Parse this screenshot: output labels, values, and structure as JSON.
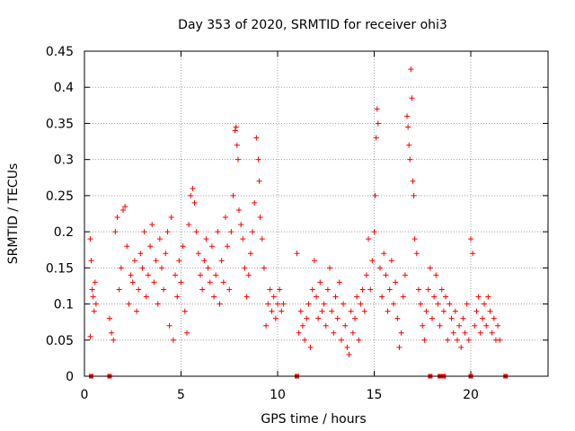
{
  "chart_data": {
    "type": "scatter",
    "title": "Day 353 of 2020, SRMTID for receiver ohi3",
    "xlabel": "GPS time / hours",
    "ylabel": "SRMTID / TECUs",
    "xlim": [
      0,
      24
    ],
    "ylim": [
      0,
      0.45
    ],
    "xticks": [
      0,
      5,
      10,
      15,
      20
    ],
    "xtick_labels": [
      "0",
      "5",
      "10",
      "15",
      "20"
    ],
    "yticks": [
      0,
      0.05,
      0.1,
      0.15,
      0.2,
      0.25,
      0.3,
      0.35,
      0.4,
      0.45
    ],
    "ytick_labels": [
      "0",
      "0.05",
      "0.1",
      "0.15",
      "0.2",
      "0.25",
      "0.3",
      "0.35",
      "0.4",
      "0.45"
    ],
    "grid": true,
    "marker": "plus",
    "series_color": "#ff0000",
    "series": [
      {
        "name": "SRMTID",
        "points": [
          [
            0.3,
            0.19
          ],
          [
            0.35,
            0.16
          ],
          [
            0.4,
            0.12
          ],
          [
            0.45,
            0.11
          ],
          [
            0.5,
            0.09
          ],
          [
            0.55,
            0.13
          ],
          [
            0.6,
            0.1
          ],
          [
            0.3,
            0.055
          ],
          [
            1.3,
            0.08
          ],
          [
            1.4,
            0.06
          ],
          [
            1.5,
            0.05
          ],
          [
            1.6,
            0.2
          ],
          [
            1.7,
            0.22
          ],
          [
            1.8,
            0.12
          ],
          [
            1.9,
            0.15
          ],
          [
            2.0,
            0.23
          ],
          [
            2.1,
            0.235
          ],
          [
            2.2,
            0.18
          ],
          [
            2.3,
            0.1
          ],
          [
            2.4,
            0.14
          ],
          [
            2.5,
            0.13
          ],
          [
            2.6,
            0.16
          ],
          [
            2.7,
            0.09
          ],
          [
            2.8,
            0.12
          ],
          [
            2.9,
            0.17
          ],
          [
            3.0,
            0.15
          ],
          [
            3.1,
            0.2
          ],
          [
            3.2,
            0.11
          ],
          [
            3.3,
            0.14
          ],
          [
            3.4,
            0.18
          ],
          [
            3.5,
            0.21
          ],
          [
            3.6,
            0.13
          ],
          [
            3.7,
            0.16
          ],
          [
            3.8,
            0.1
          ],
          [
            3.9,
            0.19
          ],
          [
            4.0,
            0.15
          ],
          [
            4.1,
            0.12
          ],
          [
            4.2,
            0.17
          ],
          [
            4.3,
            0.2
          ],
          [
            4.4,
            0.07
          ],
          [
            4.5,
            0.22
          ],
          [
            4.6,
            0.05
          ],
          [
            4.7,
            0.14
          ],
          [
            4.8,
            0.11
          ],
          [
            4.9,
            0.16
          ],
          [
            5.0,
            0.13
          ],
          [
            5.1,
            0.18
          ],
          [
            5.2,
            0.09
          ],
          [
            5.3,
            0.06
          ],
          [
            5.4,
            0.21
          ],
          [
            5.5,
            0.25
          ],
          [
            5.6,
            0.26
          ],
          [
            5.7,
            0.24
          ],
          [
            5.8,
            0.2
          ],
          [
            5.9,
            0.17
          ],
          [
            6.0,
            0.14
          ],
          [
            6.1,
            0.12
          ],
          [
            6.2,
            0.16
          ],
          [
            6.3,
            0.19
          ],
          [
            6.4,
            0.15
          ],
          [
            6.5,
            0.13
          ],
          [
            6.6,
            0.18
          ],
          [
            6.7,
            0.11
          ],
          [
            6.8,
            0.14
          ],
          [
            6.9,
            0.2
          ],
          [
            7.0,
            0.1
          ],
          [
            7.1,
            0.16
          ],
          [
            7.2,
            0.13
          ],
          [
            7.3,
            0.22
          ],
          [
            7.4,
            0.18
          ],
          [
            7.5,
            0.12
          ],
          [
            7.6,
            0.2
          ],
          [
            7.7,
            0.25
          ],
          [
            7.8,
            0.34
          ],
          [
            7.85,
            0.345
          ],
          [
            7.9,
            0.32
          ],
          [
            7.95,
            0.3
          ],
          [
            8.0,
            0.23
          ],
          [
            8.1,
            0.21
          ],
          [
            8.2,
            0.19
          ],
          [
            8.3,
            0.15
          ],
          [
            8.4,
            0.11
          ],
          [
            8.5,
            0.14
          ],
          [
            8.6,
            0.17
          ],
          [
            8.7,
            0.2
          ],
          [
            8.8,
            0.24
          ],
          [
            8.9,
            0.33
          ],
          [
            9.0,
            0.3
          ],
          [
            9.05,
            0.27
          ],
          [
            9.1,
            0.22
          ],
          [
            9.2,
            0.19
          ],
          [
            9.3,
            0.15
          ],
          [
            9.4,
            0.07
          ],
          [
            9.5,
            0.1
          ],
          [
            9.6,
            0.12
          ],
          [
            9.7,
            0.09
          ],
          [
            9.8,
            0.11
          ],
          [
            9.9,
            0.08
          ],
          [
            10.0,
            0.1
          ],
          [
            10.1,
            0.12
          ],
          [
            10.2,
            0.09
          ],
          [
            10.3,
            0.1
          ],
          [
            11.0,
            0.17
          ],
          [
            11.1,
            0.06
          ],
          [
            11.2,
            0.09
          ],
          [
            11.3,
            0.07
          ],
          [
            11.4,
            0.05
          ],
          [
            11.5,
            0.08
          ],
          [
            11.6,
            0.1
          ],
          [
            11.7,
            0.04
          ],
          [
            11.8,
            0.12
          ],
          [
            11.9,
            0.16
          ],
          [
            12.0,
            0.11
          ],
          [
            12.1,
            0.08
          ],
          [
            12.2,
            0.13
          ],
          [
            12.3,
            0.09
          ],
          [
            12.4,
            0.1
          ],
          [
            12.5,
            0.07
          ],
          [
            12.6,
            0.12
          ],
          [
            12.7,
            0.15
          ],
          [
            12.8,
            0.09
          ],
          [
            12.9,
            0.06
          ],
          [
            13.0,
            0.11
          ],
          [
            13.1,
            0.08
          ],
          [
            13.2,
            0.13
          ],
          [
            13.3,
            0.05
          ],
          [
            13.4,
            0.1
          ],
          [
            13.5,
            0.07
          ],
          [
            13.6,
            0.04
          ],
          [
            13.7,
            0.03
          ],
          [
            13.8,
            0.09
          ],
          [
            13.9,
            0.06
          ],
          [
            14.0,
            0.08
          ],
          [
            14.1,
            0.11
          ],
          [
            14.2,
            0.05
          ],
          [
            14.3,
            0.1
          ],
          [
            14.4,
            0.12
          ],
          [
            14.5,
            0.09
          ],
          [
            14.6,
            0.14
          ],
          [
            14.7,
            0.19
          ],
          [
            14.8,
            0.12
          ],
          [
            14.9,
            0.16
          ],
          [
            15.0,
            0.2
          ],
          [
            15.05,
            0.25
          ],
          [
            15.1,
            0.33
          ],
          [
            15.15,
            0.37
          ],
          [
            15.2,
            0.35
          ],
          [
            15.3,
            0.15
          ],
          [
            15.4,
            0.11
          ],
          [
            15.5,
            0.17
          ],
          [
            15.6,
            0.14
          ],
          [
            15.7,
            0.09
          ],
          [
            15.8,
            0.12
          ],
          [
            15.9,
            0.16
          ],
          [
            16.0,
            0.1
          ],
          [
            16.1,
            0.13
          ],
          [
            16.2,
            0.08
          ],
          [
            16.3,
            0.04
          ],
          [
            16.4,
            0.06
          ],
          [
            16.5,
            0.11
          ],
          [
            16.6,
            0.14
          ],
          [
            16.7,
            0.36
          ],
          [
            16.75,
            0.345
          ],
          [
            16.8,
            0.32
          ],
          [
            16.85,
            0.3
          ],
          [
            16.9,
            0.425
          ],
          [
            16.95,
            0.385
          ],
          [
            17.0,
            0.27
          ],
          [
            17.05,
            0.25
          ],
          [
            17.1,
            0.19
          ],
          [
            17.2,
            0.17
          ],
          [
            17.3,
            0.12
          ],
          [
            17.4,
            0.1
          ],
          [
            17.5,
            0.07
          ],
          [
            17.6,
            0.05
          ],
          [
            17.7,
            0.09
          ],
          [
            17.8,
            0.12
          ],
          [
            17.9,
            0.15
          ],
          [
            18.0,
            0.08
          ],
          [
            18.1,
            0.11
          ],
          [
            18.2,
            0.14
          ],
          [
            18.3,
            0.1
          ],
          [
            18.4,
            0.07
          ],
          [
            18.5,
            0.12
          ],
          [
            18.6,
            0.09
          ],
          [
            18.7,
            0.11
          ],
          [
            18.8,
            0.05
          ],
          [
            18.9,
            0.1
          ],
          [
            19.0,
            0.08
          ],
          [
            19.1,
            0.06
          ],
          [
            19.2,
            0.09
          ],
          [
            19.3,
            0.05
          ],
          [
            19.4,
            0.07
          ],
          [
            19.5,
            0.04
          ],
          [
            19.6,
            0.08
          ],
          [
            19.7,
            0.06
          ],
          [
            19.8,
            0.1
          ],
          [
            19.9,
            0.05
          ],
          [
            20.0,
            0.19
          ],
          [
            20.1,
            0.17
          ],
          [
            20.2,
            0.07
          ],
          [
            20.3,
            0.09
          ],
          [
            20.4,
            0.11
          ],
          [
            20.5,
            0.06
          ],
          [
            20.6,
            0.08
          ],
          [
            20.7,
            0.1
          ],
          [
            20.8,
            0.07
          ],
          [
            20.9,
            0.11
          ],
          [
            21.0,
            0.09
          ],
          [
            21.1,
            0.06
          ],
          [
            21.2,
            0.08
          ],
          [
            21.3,
            0.05
          ],
          [
            21.4,
            0.07
          ],
          [
            21.5,
            0.05
          ]
        ]
      }
    ],
    "zero_markers_x": [
      0.35,
      1.3,
      11.0,
      17.9,
      18.4,
      18.6,
      20.0,
      21.8
    ]
  }
}
